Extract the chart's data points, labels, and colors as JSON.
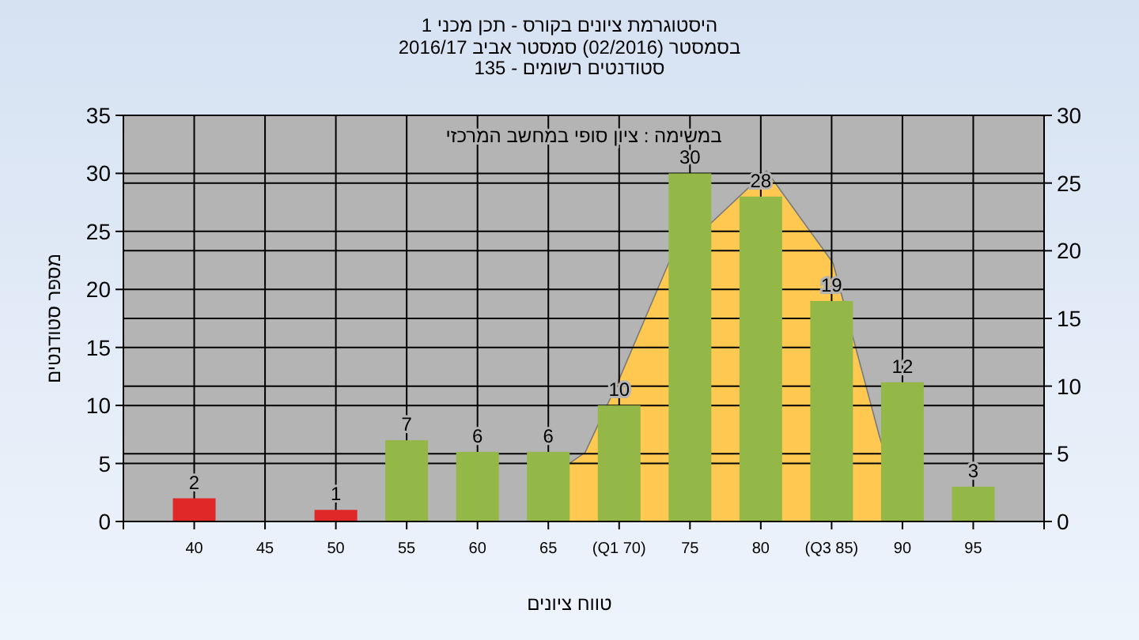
{
  "chart_data": {
    "type": "bar",
    "title": "היסטוגרמת ציונים בקורס - תכן מכני 1",
    "subtitle": "בסמסטר (02/2016) סמסטר אביב 2016/17\nסטודנטים רשומים - 135",
    "xlabel": "טווח ציונים",
    "ylabel": "מספר סטודנטים",
    "annotations": [
      "במשימה : ציון סופי במחשב המרכזי"
    ],
    "x": [
      40,
      50,
      55,
      60,
      65,
      70,
      75,
      80,
      85,
      90,
      95
    ],
    "series": [
      {
        "type": "area",
        "axis": "y2",
        "color": "#ffc850",
        "x": [
          64,
          66.5,
          67.6,
          70,
          73.5,
          80.4,
          85.1,
          88.4,
          90.3
        ],
        "values": [
          0,
          4.3,
          5.1,
          10.5,
          19.1,
          25.9,
          19.1,
          6.2,
          0
        ]
      },
      {
        "value_labels": [
          "2",
          "1",
          "7",
          "6",
          "6",
          "10",
          "30",
          "28",
          "19",
          "12",
          "3"
        ],
        "colors": [
          "#e02828",
          "#e02828",
          "#94b848",
          "#94b848",
          "#94b848",
          "#94b848",
          "#94b848",
          "#94b848",
          "#94b848",
          "#94b848",
          "#94b848"
        ],
        "values": [
          2,
          1,
          7,
          6,
          6,
          10,
          30,
          28,
          19,
          12,
          3
        ]
      }
    ],
    "xlim": [
      35,
      100
    ],
    "xticks": [
      {
        "value": 35,
        "label": null
      },
      40,
      45,
      50,
      55,
      60,
      65,
      {
        "value": 70,
        "label": "(Q1 70)"
      },
      75,
      80,
      {
        "value": 85,
        "label": "(Q3 85)"
      },
      90,
      95,
      {
        "value": 100,
        "label": null
      }
    ],
    "ylim": [
      0,
      35
    ],
    "yticks": [
      0,
      5,
      10,
      15,
      20,
      25,
      30,
      35
    ],
    "y2lim": [
      0,
      30
    ],
    "y2ticks": [
      0,
      5,
      10,
      15,
      20,
      25,
      30
    ],
    "grid": true
  }
}
